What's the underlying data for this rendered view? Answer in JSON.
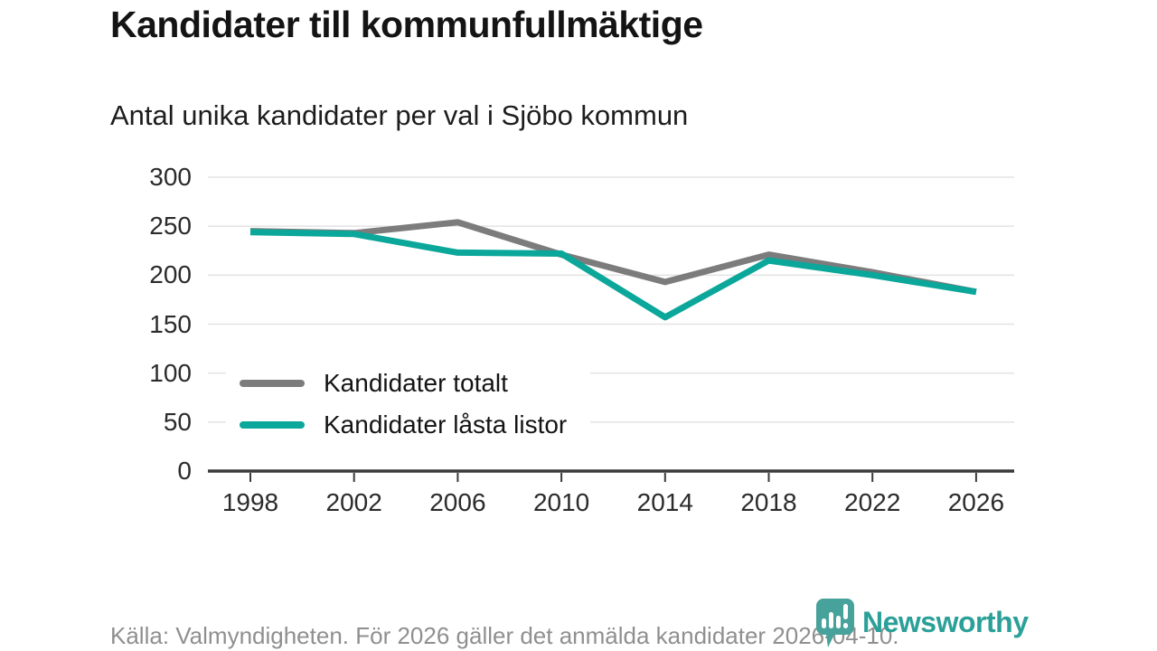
{
  "header": {
    "title": "Kandidater till kommunfullmäktige",
    "subtitle": "Antal unika kandidater per val i Sjöbo kommun"
  },
  "legend": {
    "items": [
      {
        "label": "Kandidater totalt"
      },
      {
        "label": "Kandidater låsta listor"
      }
    ]
  },
  "footer": {
    "source": "Källa: Valmyndigheten. För 2026 gäller det anmälda kandidater 2026-04-10."
  },
  "logo": {
    "text": "Newsworthy",
    "icon": "newsworthy-pin-barchart-icon"
  },
  "colors": {
    "series_total": "#7c7c7c",
    "series_locked": "#0aa79a",
    "grid": "#e3e3e3",
    "axis": "#3a3a3a",
    "logo_icon": "#47a29b",
    "logo_text": "#2aa098",
    "footer_text": "#8f8f8f"
  },
  "chart_data": {
    "type": "line",
    "title": "Kandidater till kommunfullmäktige",
    "subtitle": "Antal unika kandidater per val i Sjöbo kommun",
    "categories": [
      "1998",
      "2002",
      "2006",
      "2010",
      "2014",
      "2018",
      "2022",
      "2026"
    ],
    "series": [
      {
        "name": "Kandidater totalt",
        "color": "#7c7c7c",
        "values": [
          245,
          243,
          254,
          221,
          193,
          221,
          203,
          183
        ]
      },
      {
        "name": "Kandidater låsta listor",
        "color": "#0aa79a",
        "values": [
          244,
          242,
          223,
          222,
          157,
          215,
          200,
          183
        ]
      }
    ],
    "xlabel": "",
    "ylabel": "",
    "ylim": [
      0,
      300
    ],
    "yticks": [
      0,
      50,
      100,
      150,
      200,
      250,
      300
    ],
    "grid": true,
    "legend_position": "inside-lower-left"
  }
}
